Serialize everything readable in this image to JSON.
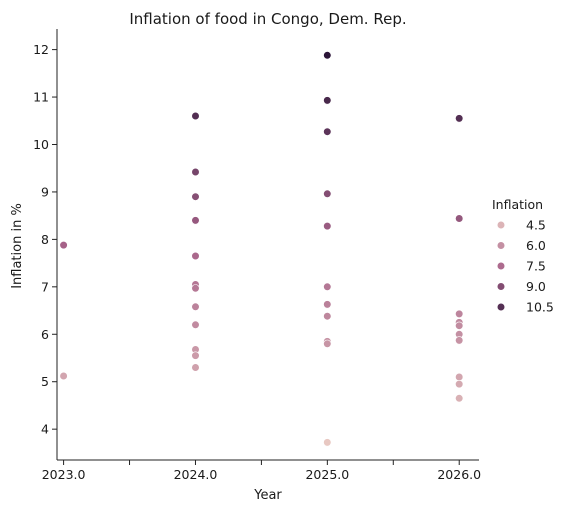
{
  "chart_data": {
    "type": "scatter",
    "title": "Inflation of food in Congo, Dem. Rep.",
    "xlabel": "Year",
    "ylabel": "Inflation in %",
    "xlim": [
      2022.95,
      2026.15
    ],
    "ylim": [
      3.35,
      12.35
    ],
    "x_ticks": [
      2023.0,
      2023.5,
      2024.0,
      2024.5,
      2025.0,
      2025.5,
      2026.0
    ],
    "x_tick_labels": [
      "2023.0",
      "",
      "2024.0",
      "",
      "2025.0",
      "",
      "2026.0"
    ],
    "y_ticks": [
      4,
      5,
      6,
      7,
      8,
      9,
      10,
      11,
      12
    ],
    "y_tick_labels": [
      "4",
      "5",
      "6",
      "7",
      "8",
      "9",
      "10",
      "11",
      "12"
    ],
    "grid": false,
    "legend": {
      "title": "Inflation",
      "placement": "right",
      "entries": [
        {
          "label": "4.5",
          "value": 4.5
        },
        {
          "label": "6.0",
          "value": 6.0
        },
        {
          "label": "7.5",
          "value": 7.5
        },
        {
          "label": "9.0",
          "value": 9.0
        },
        {
          "label": "10.5",
          "value": 10.5
        }
      ]
    },
    "hue_range": [
      3.7,
      11.9
    ],
    "colors": {
      "low": "#e8c8c2",
      "mid": "#a8648a",
      "high": "#2a1538"
    },
    "points": [
      {
        "x": 2023.0,
        "y": 7.88
      },
      {
        "x": 2023.0,
        "y": 5.12
      },
      {
        "x": 2024.0,
        "y": 10.6
      },
      {
        "x": 2024.0,
        "y": 9.42
      },
      {
        "x": 2024.0,
        "y": 8.9
      },
      {
        "x": 2024.0,
        "y": 8.4
      },
      {
        "x": 2024.0,
        "y": 7.65
      },
      {
        "x": 2024.0,
        "y": 7.05
      },
      {
        "x": 2024.0,
        "y": 6.97
      },
      {
        "x": 2024.0,
        "y": 6.58
      },
      {
        "x": 2024.0,
        "y": 6.2
      },
      {
        "x": 2024.0,
        "y": 5.68
      },
      {
        "x": 2024.0,
        "y": 5.55
      },
      {
        "x": 2024.0,
        "y": 5.3
      },
      {
        "x": 2025.0,
        "y": 11.88
      },
      {
        "x": 2025.0,
        "y": 10.93
      },
      {
        "x": 2025.0,
        "y": 10.27
      },
      {
        "x": 2025.0,
        "y": 8.96
      },
      {
        "x": 2025.0,
        "y": 8.28
      },
      {
        "x": 2025.0,
        "y": 7.0
      },
      {
        "x": 2025.0,
        "y": 6.63
      },
      {
        "x": 2025.0,
        "y": 6.38
      },
      {
        "x": 2025.0,
        "y": 5.85
      },
      {
        "x": 2025.0,
        "y": 5.8
      },
      {
        "x": 2025.0,
        "y": 3.72
      },
      {
        "x": 2026.0,
        "y": 10.55
      },
      {
        "x": 2026.0,
        "y": 8.44
      },
      {
        "x": 2026.0,
        "y": 6.43
      },
      {
        "x": 2026.0,
        "y": 6.25
      },
      {
        "x": 2026.0,
        "y": 6.18
      },
      {
        "x": 2026.0,
        "y": 6.0
      },
      {
        "x": 2026.0,
        "y": 5.87
      },
      {
        "x": 2026.0,
        "y": 5.1
      },
      {
        "x": 2026.0,
        "y": 4.95
      },
      {
        "x": 2026.0,
        "y": 4.65
      }
    ]
  }
}
